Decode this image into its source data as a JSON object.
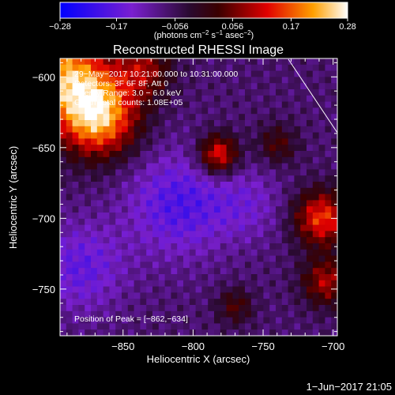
{
  "chart_data": {
    "type": "heatmap",
    "title": "Reconstructed RHESSI Image",
    "xlabel": "Heliocentric X (arcsec)",
    "ylabel": "Heliocentric Y (arcsec)",
    "xlim": [
      -895,
      -697
    ],
    "ylim": [
      -783,
      -587
    ],
    "xticks": [
      -850,
      -800,
      -750,
      -700
    ],
    "xtick_labels": [
      "−850",
      "−800",
      "−750",
      "−700"
    ],
    "yticks": [
      -600,
      -650,
      -700,
      -750
    ],
    "ytick_labels": [
      "−600",
      "−650",
      "−700",
      "−750"
    ],
    "colorbar": {
      "range": [
        -0.28,
        0.28
      ],
      "ticks": [
        -0.28,
        -0.17,
        -0.056,
        0.056,
        0.17,
        0.28
      ],
      "tick_labels": [
        "−0.28",
        "−0.17",
        "−0.056",
        "0.056",
        "0.17",
        "0.28"
      ],
      "unit_parts": [
        "(photons cm",
        "−2",
        " s",
        "−1",
        " asec",
        "−2",
        ")"
      ]
    },
    "info_lines": [
      "29−May−2017 10:21:00.000 to 10:31:00.000",
      "Detectors: 3F 6F 8F, Att 0",
      "Energy Range: 3.0 − 6.0 keV",
      "Clean    Total counts: 1.08E+05"
    ],
    "peak_label": "Position of Peak = [−862,−634]",
    "peak_position": [
      -862,
      -634
    ],
    "sources": [
      {
        "x": -868,
        "y": -628,
        "amp": 0.3,
        "sigma": 20
      },
      {
        "x": -892,
        "y": -598,
        "amp": 0.26,
        "sigma": 22
      },
      {
        "x": -835,
        "y": -595,
        "amp": 0.14,
        "sigma": 14
      },
      {
        "x": -782,
        "y": -655,
        "amp": 0.22,
        "sigma": 10
      },
      {
        "x": -708,
        "y": -700,
        "amp": 0.22,
        "sigma": 14
      },
      {
        "x": -705,
        "y": -745,
        "amp": 0.16,
        "sigma": 12
      },
      {
        "x": -740,
        "y": -648,
        "amp": 0.1,
        "sigma": 10
      },
      {
        "x": -770,
        "y": -762,
        "amp": 0.1,
        "sigma": 9
      },
      {
        "x": -810,
        "y": -690,
        "amp": -0.12,
        "sigma": 26
      },
      {
        "x": -880,
        "y": -735,
        "amp": -0.1,
        "sigma": 22
      },
      {
        "x": -760,
        "y": -690,
        "amp": -0.06,
        "sigma": 18
      }
    ],
    "background": -0.07
  },
  "footer": {
    "timestamp": "1−Jun−2017 21:05"
  }
}
